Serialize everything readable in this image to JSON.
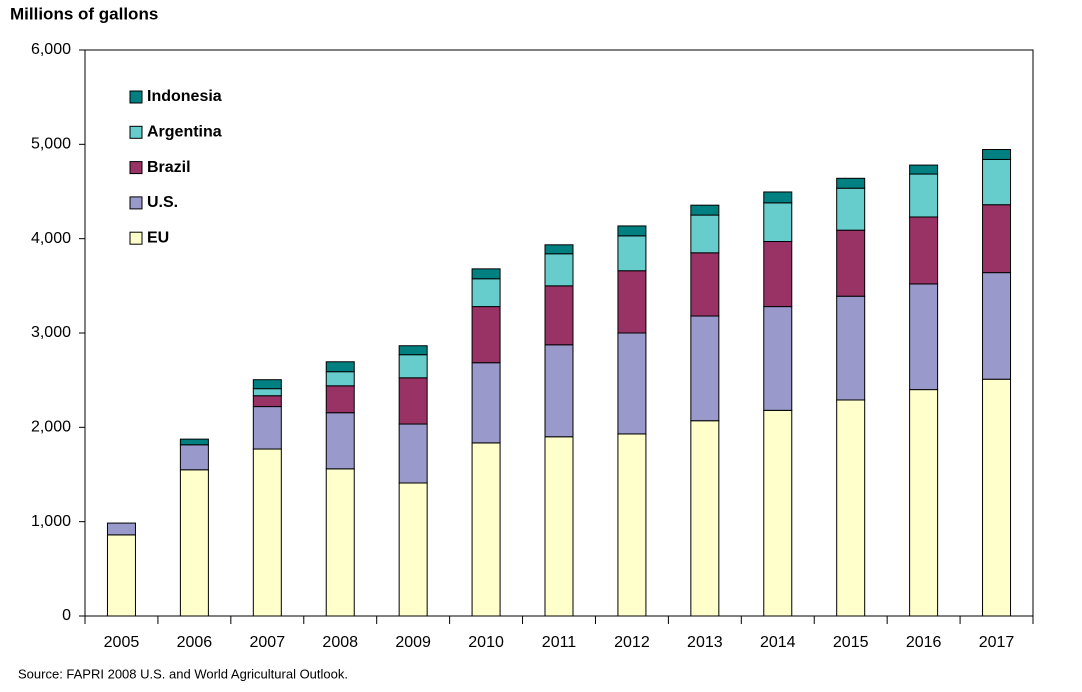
{
  "chart_data": {
    "type": "stacked-bar",
    "title": "Millions of gallons",
    "source": "Source: FAPRI 2008 U.S. and World Agricultural Outlook.",
    "categories": [
      "2005",
      "2006",
      "2007",
      "2008",
      "2009",
      "2010",
      "2011",
      "2012",
      "2013",
      "2014",
      "2015",
      "2016",
      "2017"
    ],
    "series": [
      {
        "name": "EU",
        "color": "#ffffcc",
        "values": [
          860,
          1550,
          1770,
          1560,
          1410,
          1835,
          1900,
          1930,
          2070,
          2180,
          2290,
          2400,
          2510
        ]
      },
      {
        "name": "U.S.",
        "color": "#9999cc",
        "values": [
          125,
          265,
          450,
          595,
          625,
          850,
          975,
          1070,
          1110,
          1100,
          1100,
          1120,
          1130
        ]
      },
      {
        "name": "Brazil",
        "color": "#993366",
        "values": [
          0,
          0,
          115,
          285,
          490,
          595,
          625,
          660,
          670,
          690,
          700,
          710,
          720
        ]
      },
      {
        "name": "Argentina",
        "color": "#66cccc",
        "values": [
          0,
          0,
          75,
          150,
          245,
          295,
          340,
          370,
          400,
          410,
          445,
          455,
          480
        ]
      },
      {
        "name": "Indonesia",
        "color": "#008080",
        "values": [
          0,
          60,
          95,
          105,
          95,
          105,
          95,
          105,
          105,
          115,
          105,
          95,
          105
        ]
      }
    ],
    "ylim": [
      0,
      6000
    ],
    "yticks": [
      0,
      {
        "value": 1000,
        "label": "1,000"
      },
      {
        "value": 2000,
        "label": "2,000"
      },
      {
        "value": 3000,
        "label": "3,000"
      },
      {
        "value": 4000,
        "label": "4,000"
      },
      {
        "value": 5000,
        "label": "5,000"
      },
      {
        "value": 6000,
        "label": "6,000"
      }
    ],
    "legend": "upper-left"
  }
}
